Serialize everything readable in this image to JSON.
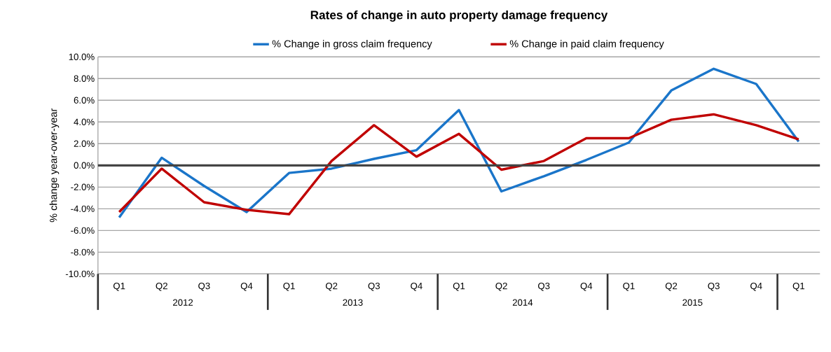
{
  "chart_data": {
    "type": "line",
    "title": "Rates of change in auto property damage frequency",
    "ylabel": "% change year-over-year",
    "categories": [
      "Q1",
      "Q2",
      "Q3",
      "Q4",
      "Q1",
      "Q2",
      "Q3",
      "Q4",
      "Q1",
      "Q2",
      "Q3",
      "Q4",
      "Q1",
      "Q2",
      "Q3",
      "Q4",
      "Q1"
    ],
    "series": [
      {
        "name": "% Change in gross claim frequency",
        "color": "#1a75c9",
        "values": [
          -4.8,
          0.7,
          -1.9,
          -4.3,
          -0.7,
          -0.3,
          0.6,
          1.4,
          5.1,
          -2.4,
          -1.0,
          0.5,
          2.1,
          6.9,
          8.9,
          7.5,
          2.2
        ]
      },
      {
        "name": "% Change in paid claim frequency",
        "color": "#c00000",
        "values": [
          -4.3,
          -0.3,
          -3.4,
          -4.1,
          -4.5,
          0.4,
          3.7,
          0.8,
          2.9,
          -0.4,
          0.4,
          2.5,
          2.5,
          4.2,
          4.7,
          3.7,
          2.4
        ]
      }
    ],
    "ylim": [
      -10,
      10
    ],
    "yticks": [
      {
        "value": -10,
        "label": "-10.0%"
      },
      {
        "value": -8,
        "label": "-8.0%"
      },
      {
        "value": -6,
        "label": "-6.0%"
      },
      {
        "value": -4,
        "label": "-4.0%"
      },
      {
        "value": -2,
        "label": "-2.0%"
      },
      {
        "value": 0,
        "label": "0.0%"
      },
      {
        "value": 2,
        "label": "2.0%"
      },
      {
        "value": 4,
        "label": "4.0%"
      },
      {
        "value": 6,
        "label": "6.0%"
      },
      {
        "value": 8,
        "label": "8.0%"
      },
      {
        "value": 10,
        "label": "10.0%"
      }
    ],
    "annotations": [
      "2012",
      "2013",
      "2014",
      "2015"
    ],
    "ref_lines": [
      {
        "axis": "y",
        "value": 0,
        "color": "#444444"
      }
    ],
    "grid": "y",
    "legend": "top",
    "marker": "none",
    "line_style": "solid"
  }
}
